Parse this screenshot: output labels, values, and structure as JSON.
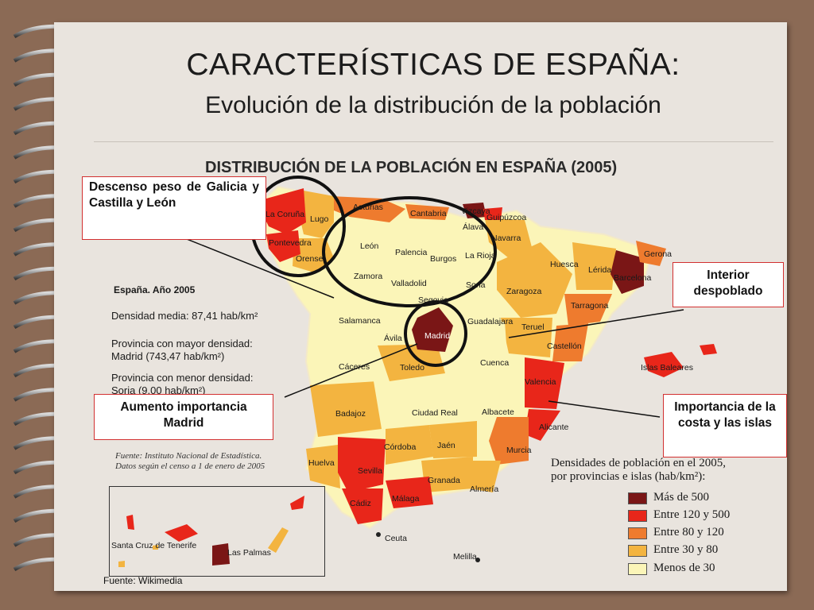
{
  "title": "CARACTERÍSTICAS DE ESPAÑA:",
  "subtitle": "Evolución de la distribución de la población",
  "map": {
    "title": "DISTRIBUCIÓN DE LA POBLACIÓN EN ESPAÑA (2005)",
    "info_heading": "España. Año 2005",
    "density_avg": "Densidad media: 87,41 hab/km²",
    "max_density_1": "Provincia con mayor densidad:",
    "max_density_2": "Madrid (743,47 hab/km²)",
    "min_density_1": "Provincia con menor densidad:",
    "min_density_2": "Soria (9,00 hab/km²)",
    "source_ine_1": "Fuente: Instituto Nacional de Estadística.",
    "source_ine_2": "Datos según el censo a 1 de enero de 2005",
    "legend_title_1": "Densidades de población en el 2005,",
    "legend_title_2": "por provincias e islas (hab/km²):",
    "legend": [
      {
        "label": "Más de 500",
        "color": "#7a1616"
      },
      {
        "label": "Entre 120 y 500",
        "color": "#e8261a"
      },
      {
        "label": "Entre 80 y 120",
        "color": "#ee7b2e"
      },
      {
        "label": "Entre 30 y 80",
        "color": "#f3b440"
      },
      {
        "label": "Menos de 30",
        "color": "#fbf5b8"
      }
    ],
    "provinces": {
      "coruna": "La Coruña",
      "lugo": "Lugo",
      "pontevedra": "Pontevedra",
      "orense": "Orense",
      "asturias": "Asturias",
      "cantabria": "Cantabria",
      "vizcaya": "Vizcaya",
      "guipuzcoa": "Guipúzcoa",
      "alava": "Álava",
      "navarra": "Navarra",
      "leon": "León",
      "palencia": "Palencia",
      "burgos": "Burgos",
      "rioja": "La Rioja",
      "huesca": "Huesca",
      "gerona": "Gerona",
      "lerida": "Lérida",
      "barcelona": "Barcelona",
      "zamora": "Zamora",
      "valladolid": "Valladolid",
      "soria": "Soria",
      "zaragoza": "Zaragoza",
      "tarragona": "Tarragona",
      "segovia": "Segovia",
      "salamanca": "Salamanca",
      "guadalajara": "Guadalajara",
      "avila": "Ávila",
      "madrid": "Madrid",
      "teruel": "Teruel",
      "castellon": "Castellón",
      "caceres": "Cáceres",
      "toledo": "Toledo",
      "cuenca": "Cuenca",
      "baleares": "Islas Baleares",
      "valencia": "Valencia",
      "badajoz": "Badajoz",
      "ciudad_real": "Ciudad Real",
      "albacete": "Albacete",
      "alicante": "Alicante",
      "cordoba": "Córdoba",
      "jaen": "Jaén",
      "murcia": "Murcia",
      "huelva": "Huelva",
      "sevilla": "Sevilla",
      "granada": "Granada",
      "almeria": "Almería",
      "cadiz": "Cádiz",
      "malaga": "Málaga",
      "ceuta": "Ceuta",
      "melilla": "Melilla",
      "tenerife": "Santa Cruz de Tenerife",
      "las_palmas": "Las Palmas"
    },
    "annotations": {
      "galicia": "Descenso peso de Galicia y Castilla y León",
      "interior": "Interior despoblado",
      "madrid": "Aumento importancia Madrid",
      "costa": "Importancia de la costa y las islas"
    },
    "source_wiki": "Fuente: Wikimedia"
  }
}
